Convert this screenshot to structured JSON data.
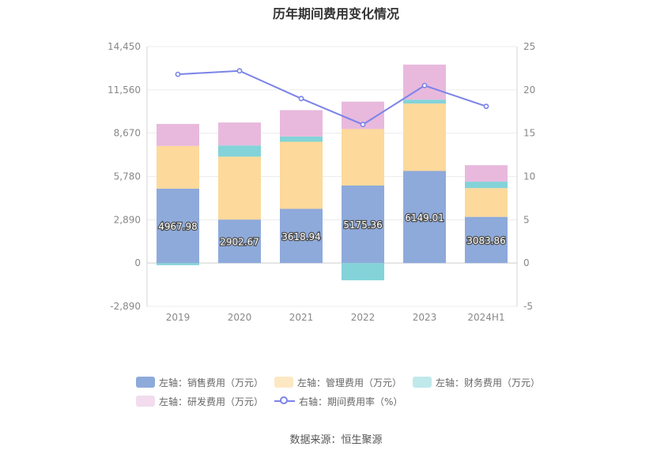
{
  "chart_data": {
    "type": "bar",
    "title": "历年期间费用变化情况",
    "categories": [
      "2019",
      "2020",
      "2021",
      "2022",
      "2023",
      "2024H1"
    ],
    "series": [
      {
        "name": "左轴：销售费用（万元）",
        "axis": "left",
        "color": "#8eaadb",
        "values": [
          4967.98,
          2902.67,
          3618.94,
          5175.36,
          6149.01,
          3083.86
        ],
        "labels": [
          "4967.98",
          "2902.67",
          "3618.94",
          "5175.36",
          "6149.01",
          "3083.86"
        ]
      },
      {
        "name": "左轴：管理费用（万元）",
        "axis": "left",
        "color": "#fdd99b",
        "values": [
          2850,
          4200,
          4480,
          3770,
          4500,
          1920
        ]
      },
      {
        "name": "左轴：财务费用（万元）",
        "axis": "left",
        "color": "#83d3d8",
        "values": [
          -140,
          750,
          350,
          -1150,
          260,
          430
        ]
      },
      {
        "name": "左轴：研发费用（万元）",
        "axis": "left",
        "color": "#e8b9dc",
        "values": [
          1470,
          1530,
          1760,
          1830,
          2340,
          1100
        ]
      },
      {
        "name": "右轴：期间费用率（%）",
        "axis": "right",
        "type": "line",
        "color": "#7b83e8",
        "values": [
          21.8,
          22.2,
          19.0,
          16.0,
          20.5,
          18.1
        ]
      }
    ],
    "left_axis": {
      "ticks": [
        -2890,
        0,
        2890,
        5780,
        8670,
        11560,
        14450
      ],
      "tick_labels": [
        "-2,890",
        "0",
        "2,890",
        "5,780",
        "8,670",
        "11,560",
        "14,450"
      ],
      "ylim": [
        -2890,
        14450
      ]
    },
    "right_axis": {
      "ticks": [
        -5,
        0,
        5,
        10,
        15,
        20,
        25
      ],
      "tick_labels": [
        "-5",
        "0",
        "5",
        "10",
        "15",
        "20",
        "25"
      ],
      "ylim": [
        -5,
        25
      ]
    },
    "stacked": true,
    "grid": true,
    "legend_position": "bottom"
  },
  "source": "数据来源：恒生聚源"
}
